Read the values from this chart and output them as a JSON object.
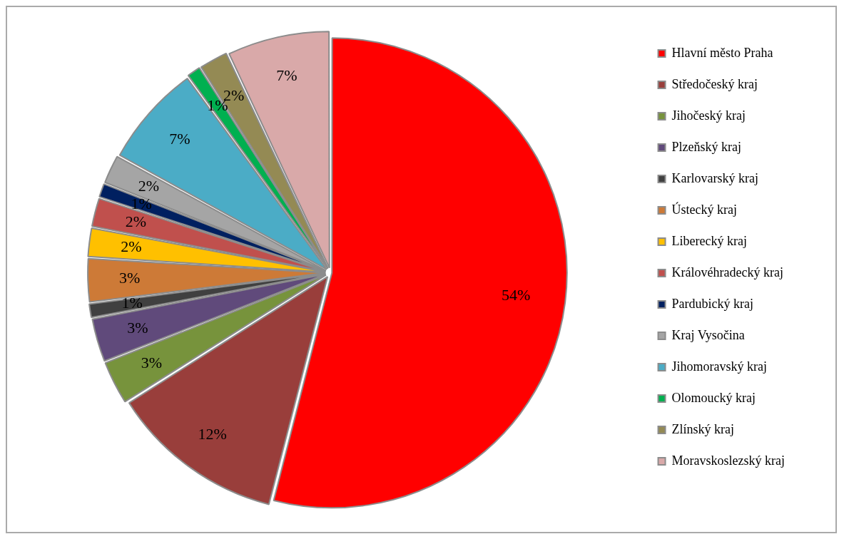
{
  "chart_data": {
    "type": "pie",
    "categories": [
      "Hlavní město Praha",
      "Středočeský kraj",
      "Jihočeský kraj",
      "Plzeňský kraj",
      "Karlovarský kraj",
      "Ústecký kraj",
      "Liberecký kraj",
      "Královéhradecký kraj",
      "Pardubický kraj",
      "Kraj Vysočina",
      "Jihomoravský kraj",
      "Olomoucký kraj",
      "Zlínský kraj",
      "Moravskoslezský kraj"
    ],
    "values": [
      54,
      12,
      3,
      3,
      1,
      3,
      2,
      2,
      1,
      2,
      7,
      1,
      2,
      7
    ],
    "value_labels": [
      "54%",
      "12%",
      "3%",
      "3%",
      "1%",
      "3%",
      "2%",
      "2%",
      "1%",
      "2%",
      "7%",
      "1%",
      "2%",
      "7%"
    ],
    "colors": [
      "#ff0000",
      "#993e3b",
      "#77933c",
      "#604a7b",
      "#404040",
      "#cd7a37",
      "#ffc000",
      "#c0504d",
      "#002060",
      "#a5a5a5",
      "#4bacc6",
      "#00b050",
      "#948a54",
      "#d9a9a9"
    ],
    "legend": "right"
  }
}
